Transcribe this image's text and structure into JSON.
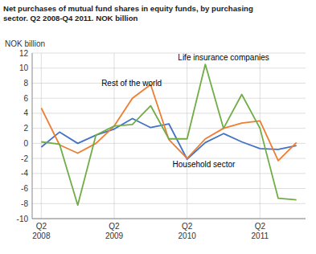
{
  "chart_data": {
    "type": "line",
    "title": "Net purchases of mutual fund shares in equity funds, by purchasing\nsector. Q2 2008-Q4 2011. NOK billion",
    "y_label": "NOK billion",
    "categories": [
      "Q2\n2008",
      null,
      null,
      null,
      "Q2\n2009",
      null,
      null,
      null,
      "Q2\n2010",
      null,
      null,
      null,
      "Q2\n2011",
      null,
      null
    ],
    "series": [
      {
        "color": "#4472C4",
        "values": [
          -0.5,
          1.5,
          0.0,
          1.1,
          1.9,
          3.3,
          2.1,
          2.6,
          -2.1,
          0.1,
          1.3,
          0.2,
          -0.7,
          -0.8,
          -0.3
        ]
      },
      {
        "color": "#ED7D31",
        "values": [
          4.7,
          -0.2,
          -1.3,
          0.0,
          2.3,
          6.0,
          7.8,
          0.5,
          -2.0,
          0.6,
          2.0,
          2.7,
          3.0,
          -2.3,
          0.1
        ]
      },
      {
        "color": "#70AD47",
        "values": [
          0.2,
          -0.1,
          -8.2,
          1.1,
          2.3,
          2.5,
          5.0,
          0.6,
          0.6,
          10.5,
          2.0,
          6.5,
          2.0,
          -7.3,
          -7.5
        ]
      }
    ],
    "annotations": [
      {
        "text": "Household sector",
        "x": 7.2,
        "y": -3.2
      },
      {
        "text": "Rest of the world",
        "x": 3.3,
        "y": 7.6
      },
      {
        "text": "Life insurance companies",
        "x": 7.5,
        "y": 11.0
      }
    ],
    "ylim": [
      -10,
      12
    ],
    "yticks": [
      -10,
      -8,
      -6,
      -4,
      -2,
      0,
      2,
      4,
      6,
      8,
      10,
      12
    ],
    "grid": true
  }
}
